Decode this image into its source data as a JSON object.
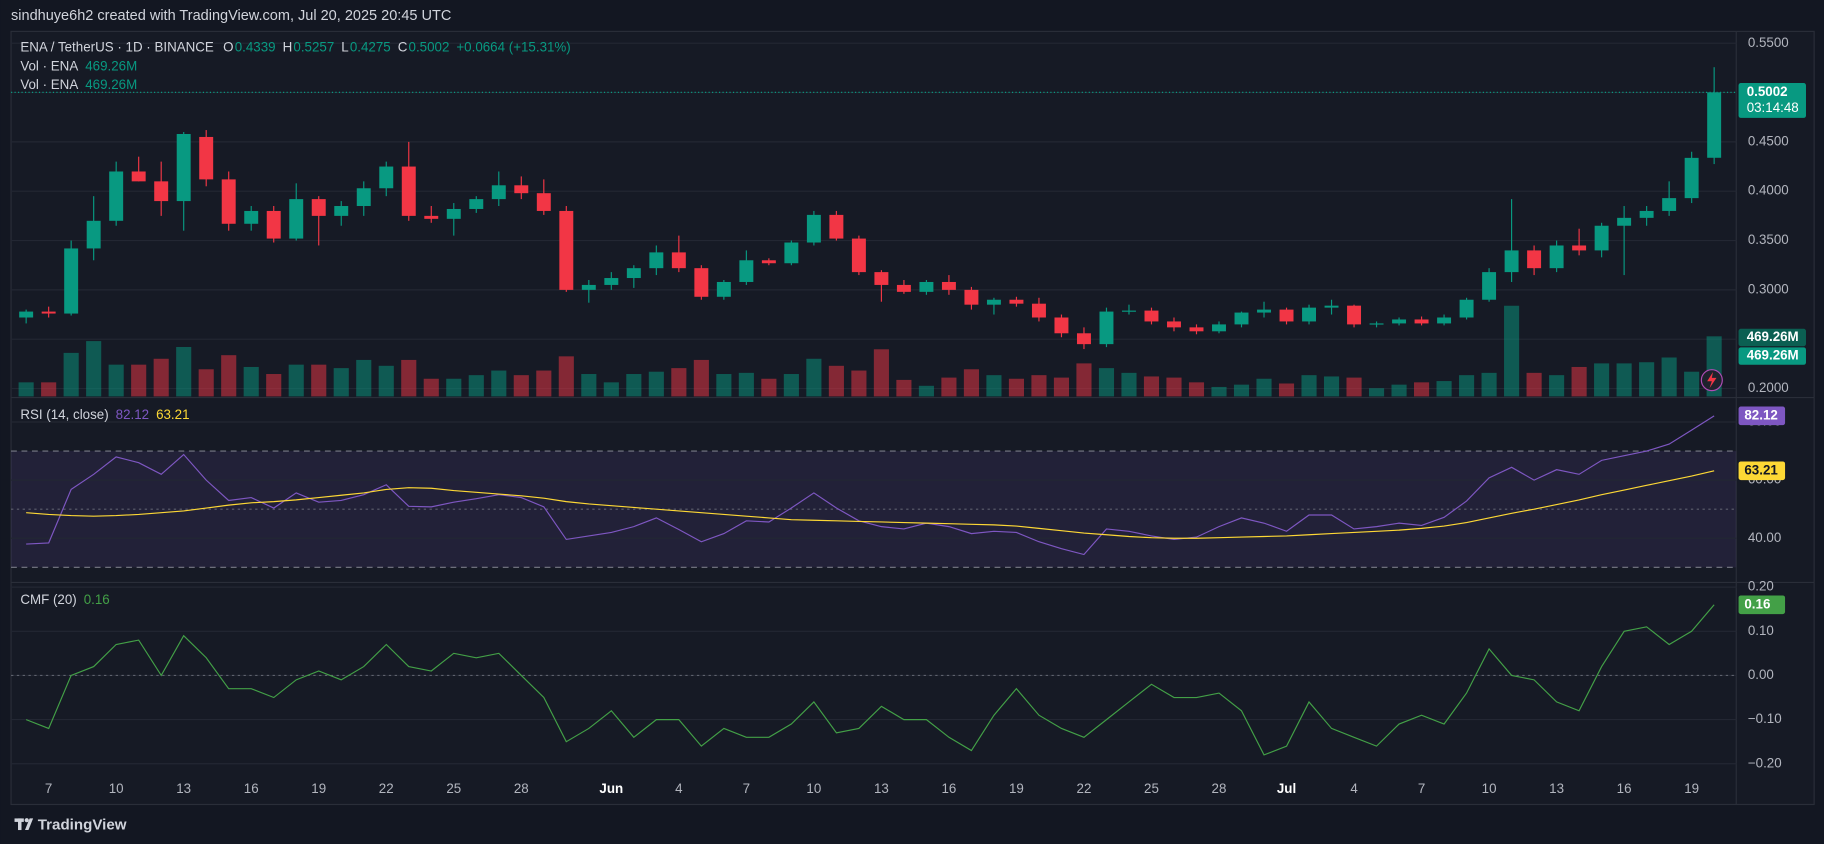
{
  "header": {
    "text": "sindhuye6h2 created with TradingView.com, Jul 20, 2025 20:45 UTC"
  },
  "footer": {
    "brand": "TradingView"
  },
  "chart_data": [
    {
      "type": "candlestick",
      "title": "ENA / TetherUS · 1D · BINANCE",
      "ohlc_labels": [
        "O",
        "H",
        "L",
        "C"
      ],
      "change": "+0.0664 (+15.31%)",
      "countdown": "03:14:48",
      "categories": [
        null,
        "7",
        null,
        null,
        "10",
        null,
        null,
        "13",
        null,
        null,
        "16",
        null,
        null,
        "19",
        null,
        null,
        "22",
        null,
        null,
        "25",
        null,
        null,
        "28",
        null,
        null,
        null,
        "Jun",
        null,
        null,
        "4",
        null,
        null,
        "7",
        null,
        null,
        "10",
        null,
        null,
        "13",
        null,
        null,
        "16",
        null,
        null,
        "19",
        null,
        null,
        "22",
        null,
        null,
        "25",
        null,
        null,
        "28",
        null,
        null,
        "Jul",
        null,
        null,
        "4",
        null,
        null,
        "7",
        null,
        null,
        "10",
        null,
        null,
        "13",
        null,
        null,
        "16",
        null,
        null,
        "19",
        null
      ],
      "open": [
        0.272,
        0.278,
        0.276,
        0.342,
        0.37,
        0.42,
        0.41,
        0.39,
        0.455,
        0.412,
        0.367,
        0.38,
        0.352,
        0.392,
        0.375,
        0.385,
        0.403,
        0.425,
        0.375,
        0.372,
        0.382,
        0.392,
        0.406,
        0.398,
        0.38,
        0.3,
        0.305,
        0.312,
        0.322,
        0.338,
        0.322,
        0.293,
        0.308,
        0.33,
        0.327,
        0.348,
        0.376,
        0.352,
        0.318,
        0.305,
        0.298,
        0.308,
        0.3,
        0.285,
        0.29,
        0.286,
        0.272,
        0.256,
        0.245,
        0.278,
        0.279,
        0.268,
        0.262,
        0.258,
        0.265,
        0.277,
        0.28,
        0.268,
        0.282,
        0.284,
        0.265,
        0.266,
        0.27,
        0.266,
        0.272,
        0.29,
        0.318,
        0.34,
        0.322,
        0.345,
        0.34,
        0.365,
        0.373,
        0.38,
        0.393,
        0.4339
      ],
      "high": [
        0.28,
        0.283,
        0.35,
        0.395,
        0.43,
        0.435,
        0.43,
        0.46,
        0.462,
        0.42,
        0.385,
        0.385,
        0.408,
        0.395,
        0.39,
        0.41,
        0.43,
        0.45,
        0.385,
        0.388,
        0.395,
        0.42,
        0.415,
        0.412,
        0.385,
        0.31,
        0.318,
        0.325,
        0.345,
        0.355,
        0.325,
        0.31,
        0.34,
        0.332,
        0.35,
        0.38,
        0.38,
        0.355,
        0.32,
        0.31,
        0.31,
        0.315,
        0.303,
        0.292,
        0.293,
        0.292,
        0.275,
        0.262,
        0.282,
        0.285,
        0.282,
        0.272,
        0.265,
        0.268,
        0.278,
        0.288,
        0.282,
        0.285,
        0.29,
        0.285,
        0.268,
        0.272,
        0.273,
        0.275,
        0.292,
        0.322,
        0.392,
        0.345,
        0.35,
        0.362,
        0.368,
        0.385,
        0.385,
        0.41,
        0.44,
        0.5257
      ],
      "low": [
        0.266,
        0.272,
        0.274,
        0.33,
        0.365,
        0.41,
        0.375,
        0.36,
        0.405,
        0.36,
        0.36,
        0.348,
        0.35,
        0.345,
        0.365,
        0.375,
        0.395,
        0.37,
        0.368,
        0.355,
        0.378,
        0.385,
        0.392,
        0.376,
        0.298,
        0.287,
        0.3,
        0.302,
        0.315,
        0.318,
        0.29,
        0.29,
        0.305,
        0.325,
        0.325,
        0.345,
        0.35,
        0.315,
        0.288,
        0.296,
        0.295,
        0.295,
        0.28,
        0.275,
        0.283,
        0.268,
        0.252,
        0.24,
        0.242,
        0.275,
        0.265,
        0.258,
        0.255,
        0.256,
        0.262,
        0.272,
        0.265,
        0.265,
        0.275,
        0.262,
        0.262,
        0.264,
        0.264,
        0.264,
        0.27,
        0.288,
        0.308,
        0.315,
        0.318,
        0.335,
        0.333,
        0.315,
        0.365,
        0.375,
        0.388,
        0.4275
      ],
      "close": [
        0.278,
        0.276,
        0.342,
        0.37,
        0.42,
        0.41,
        0.39,
        0.458,
        0.412,
        0.367,
        0.38,
        0.352,
        0.392,
        0.375,
        0.385,
        0.403,
        0.425,
        0.375,
        0.372,
        0.382,
        0.392,
        0.406,
        0.398,
        0.38,
        0.3,
        0.305,
        0.312,
        0.322,
        0.338,
        0.322,
        0.293,
        0.308,
        0.33,
        0.327,
        0.348,
        0.376,
        0.352,
        0.318,
        0.305,
        0.298,
        0.308,
        0.3,
        0.285,
        0.29,
        0.286,
        0.272,
        0.256,
        0.245,
        0.278,
        0.279,
        0.268,
        0.262,
        0.258,
        0.265,
        0.277,
        0.28,
        0.268,
        0.282,
        0.284,
        0.265,
        0.266,
        0.27,
        0.266,
        0.272,
        0.29,
        0.318,
        0.34,
        0.322,
        0.345,
        0.34,
        0.365,
        0.373,
        0.38,
        0.393,
        0.4338,
        0.5002
      ],
      "up_color": "#089981",
      "down_color": "#f23645",
      "volume": {
        "name": "Vol · ENA",
        "label": "469.26M",
        "values": [
          110,
          110,
          340,
          432,
          248,
          248,
          294,
          386,
          212,
          322,
          230,
          175,
          248,
          248,
          221,
          285,
          239,
          285,
          138,
          138,
          166,
          202,
          166,
          202,
          313,
          175,
          110,
          175,
          193,
          221,
          285,
          175,
          184,
          138,
          175,
          294,
          239,
          202,
          368,
          129,
          83,
          147,
          212,
          166,
          138,
          166,
          147,
          258,
          221,
          184,
          156,
          147,
          110,
          74,
          92,
          138,
          101,
          166,
          156,
          147,
          64,
          92,
          110,
          120,
          166,
          184,
          708,
          184,
          166,
          230,
          258,
          258,
          267,
          304,
          193,
          469.26
        ]
      },
      "ylim": [
        0.192,
        0.562
      ],
      "yticks": [
        {
          "value": 0.2,
          "label": "0.2000"
        },
        {
          "value": 0.25,
          "label": "0.2500"
        },
        {
          "value": 0.3,
          "label": "0.3000"
        },
        {
          "value": 0.35,
          "label": "0.3500"
        },
        {
          "value": 0.4,
          "label": "0.4000"
        },
        {
          "value": 0.45,
          "label": "0.4500"
        },
        {
          "value": 0.5,
          "label": "0.5000"
        },
        {
          "value": 0.55,
          "label": "0.5500"
        }
      ],
      "grid": true
    },
    {
      "type": "line",
      "title": "RSI (14, close)",
      "series": [
        {
          "color": "#7e57c2",
          "label_color": "#ffffff",
          "values": [
            38,
            38.4,
            56.8,
            62,
            68,
            66,
            62,
            68.8,
            60,
            53,
            54,
            50.4,
            55.6,
            52.4,
            53,
            55,
            58.4,
            51,
            50.8,
            52.4,
            53.6,
            55,
            54,
            50.8,
            39.6,
            40.8,
            42,
            44,
            47,
            43,
            38.8,
            41.6,
            46,
            45.6,
            50.4,
            55.6,
            50.4,
            46,
            44,
            43.2,
            45.2,
            44,
            41.6,
            42.4,
            42,
            38.8,
            36.4,
            34.4,
            43.2,
            42.4,
            40.8,
            39.6,
            40.4,
            44,
            47,
            45.2,
            42.4,
            48,
            48,
            43.2,
            44,
            45.2,
            44.4,
            47.2,
            52.8,
            60.8,
            64.4,
            60,
            63.6,
            62,
            66.8,
            68.4,
            70,
            72.4,
            77.2,
            82.12
          ]
        },
        {
          "color": "#fdd835",
          "label_color": "#131722",
          "values": [
            48.8,
            48.2,
            47.8,
            47.6,
            47.8,
            48.2,
            48.8,
            49.4,
            50.4,
            51.4,
            52.2,
            52.6,
            53.2,
            54,
            54.8,
            55.6,
            56.8,
            57.4,
            57.2,
            56.4,
            55.8,
            55.2,
            54.6,
            53.8,
            52.6,
            51.8,
            51.2,
            50.6,
            50,
            49.4,
            48.8,
            48.2,
            47.6,
            47,
            46.4,
            46.2,
            46,
            45.8,
            45.6,
            45.4,
            45.2,
            45,
            44.8,
            44.6,
            44.2,
            43.4,
            42.6,
            41.8,
            41.2,
            40.6,
            40.2,
            40,
            40,
            40.2,
            40.4,
            40.6,
            40.8,
            41.2,
            41.6,
            42,
            42.4,
            42.8,
            43.4,
            44.2,
            45.4,
            47,
            48.6,
            50,
            51.6,
            53.2,
            55,
            56.6,
            58.2,
            59.8,
            61.4,
            63.21
          ]
        }
      ],
      "ylim": [
        25.2,
        88
      ],
      "yticks": [
        {
          "value": 40,
          "label": "40.00"
        },
        {
          "value": 60,
          "label": "60.00"
        },
        {
          "value": 80,
          "label": "80.00"
        }
      ],
      "bands": [
        30,
        70
      ],
      "band_fill": "rgba(126,87,194,0.12)",
      "midline": 50,
      "grid": true
    },
    {
      "type": "line",
      "title": "CMF (20)",
      "series": [
        {
          "color": "#43a047",
          "label_color": "#ffffff",
          "values": [
            -0.1,
            -0.12,
            0.0,
            0.02,
            0.07,
            0.08,
            0.0,
            0.09,
            0.04,
            -0.03,
            -0.03,
            -0.05,
            -0.01,
            0.01,
            -0.01,
            0.02,
            0.07,
            0.02,
            0.01,
            0.05,
            0.04,
            0.05,
            0.0,
            -0.05,
            -0.15,
            -0.12,
            -0.08,
            -0.14,
            -0.1,
            -0.1,
            -0.16,
            -0.12,
            -0.14,
            -0.14,
            -0.11,
            -0.06,
            -0.13,
            -0.12,
            -0.07,
            -0.1,
            -0.1,
            -0.14,
            -0.17,
            -0.09,
            -0.03,
            -0.09,
            -0.12,
            -0.14,
            -0.1,
            -0.06,
            -0.02,
            -0.05,
            -0.05,
            -0.04,
            -0.08,
            -0.18,
            -0.16,
            -0.06,
            -0.12,
            -0.14,
            -0.16,
            -0.11,
            -0.09,
            -0.11,
            -0.04,
            0.06,
            0.0,
            -0.01,
            -0.06,
            -0.08,
            0.02,
            0.1,
            0.11,
            0.07,
            0.1,
            0.16
          ]
        }
      ],
      "ylim": [
        -0.287,
        0.208
      ],
      "yticks": [
        {
          "value": 0.2,
          "label": "0.20"
        },
        {
          "value": 0.1,
          "label": "0.10"
        },
        {
          "value": 0,
          "label": "0.00"
        },
        {
          "value": -0.1,
          "label": "−0.10"
        },
        {
          "value": -0.2,
          "label": "−0.20"
        }
      ],
      "midline": 0,
      "grid": true
    }
  ]
}
